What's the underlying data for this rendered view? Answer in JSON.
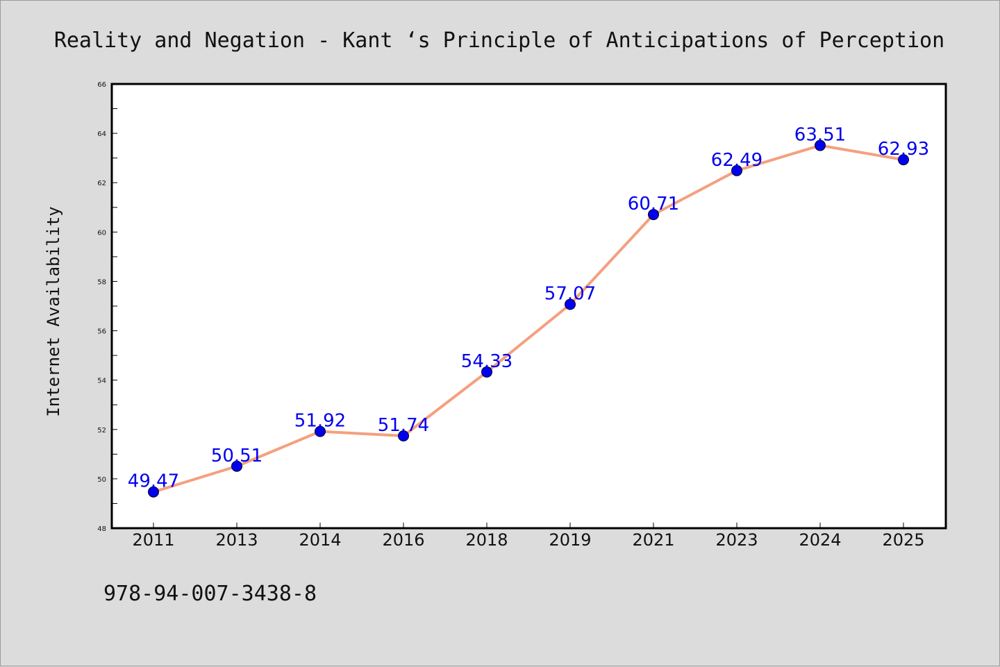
{
  "chart_data": {
    "type": "line",
    "title": "Reality and Negation - Kant ‘s Principle of Anticipations of Perception",
    "xlabel": "",
    "ylabel": "Internet Availability",
    "categories": [
      "2011",
      "2013",
      "2014",
      "2016",
      "2018",
      "2019",
      "2021",
      "2023",
      "2024",
      "2025"
    ],
    "series": [
      {
        "values": [
          49.47,
          50.51,
          51.92,
          51.74,
          54.33,
          57.07,
          60.71,
          62.49,
          63.51,
          62.93
        ],
        "data_labels": [
          "49.47",
          "50.51",
          "51.92",
          "51.74",
          "54.33",
          "57.07",
          "60.71",
          "62.49",
          "63.51",
          "62.93"
        ]
      }
    ],
    "ylim": [
      48,
      66
    ],
    "yticks": [
      "48",
      "50",
      "52",
      "54",
      "56",
      "58",
      "60",
      "62",
      "64",
      "66"
    ],
    "grid": false,
    "legend": "none",
    "colors": {
      "line": "#f4a07f",
      "marker": "#0000ee",
      "label": "#0000ee"
    }
  },
  "footer": {
    "isbn": "978-94-007-3438-8"
  }
}
